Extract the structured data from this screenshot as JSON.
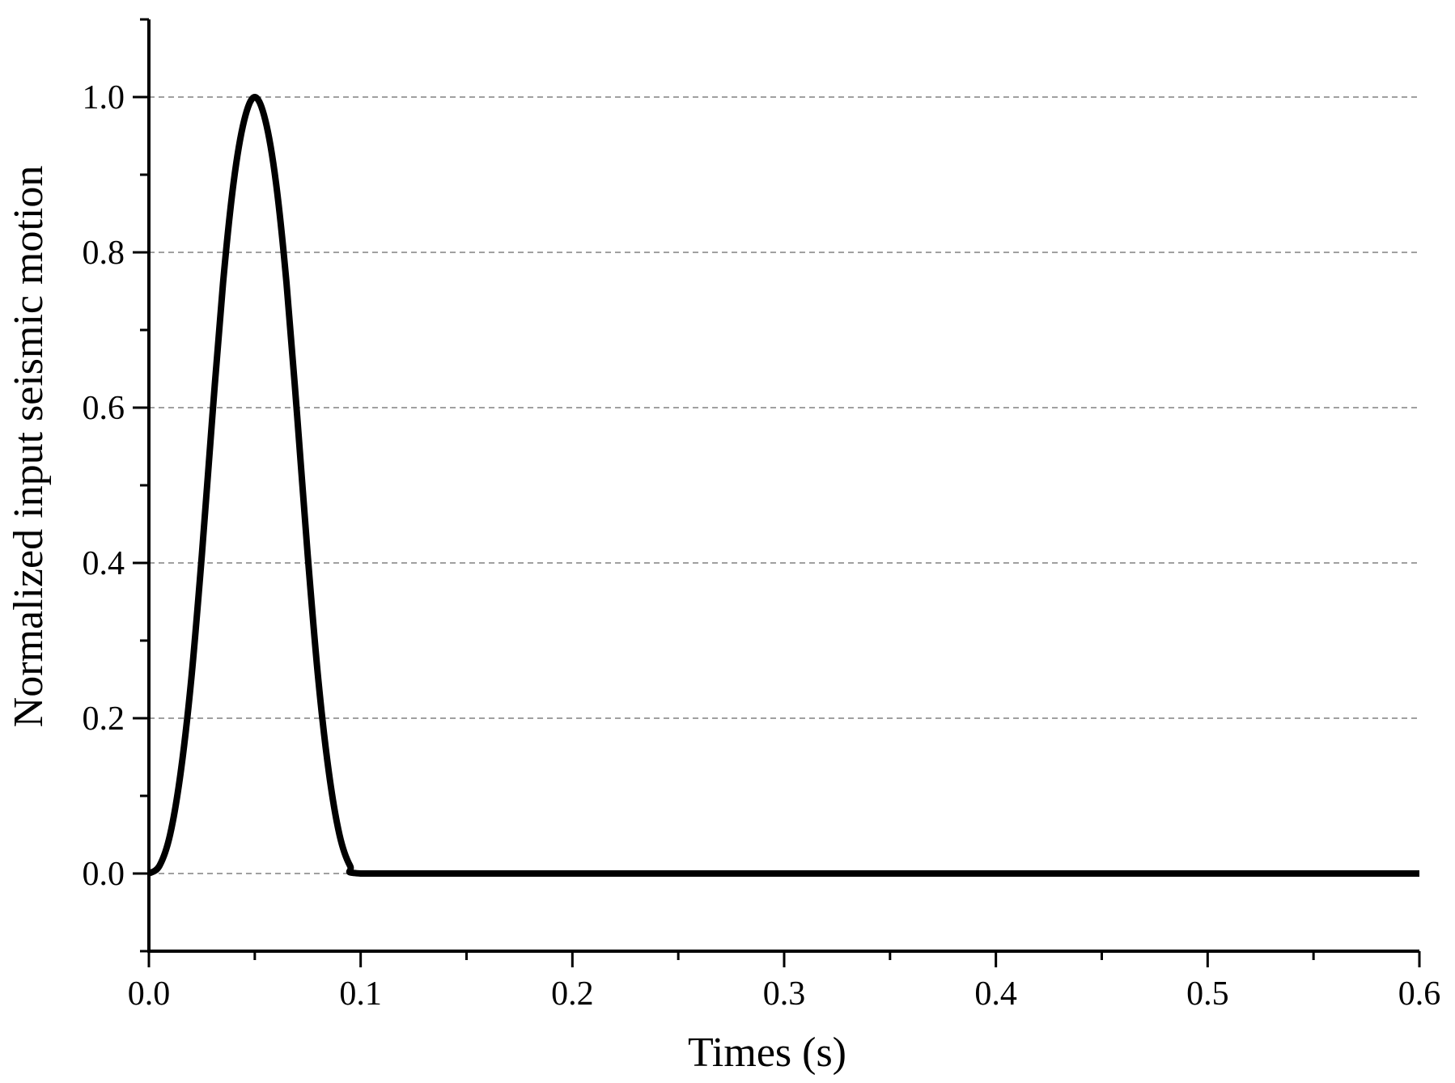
{
  "chart_data": {
    "type": "line",
    "xlabel": "Times (s)",
    "ylabel": "Normalized input seismic motion",
    "xlim": [
      0.0,
      0.6
    ],
    "ylim": [
      -0.1,
      1.1
    ],
    "x_ticks": [
      0.0,
      0.1,
      0.2,
      0.3,
      0.4,
      0.5,
      0.6
    ],
    "x_tick_labels": [
      "0.0",
      "0.1",
      "0.2",
      "0.3",
      "0.4",
      "0.5",
      "0.6"
    ],
    "x_minor_ticks": [
      0.05,
      0.15,
      0.25,
      0.35,
      0.45,
      0.55
    ],
    "y_ticks": [
      0.0,
      0.2,
      0.4,
      0.6,
      0.8,
      1.0
    ],
    "y_tick_labels": [
      "0.0",
      "0.2",
      "0.4",
      "0.6",
      "0.8",
      "1.0"
    ],
    "y_minor_ticks": [
      -0.1,
      0.1,
      0.3,
      0.5,
      0.7,
      0.9,
      1.1
    ],
    "grid": "horizontal dashed at major y ticks",
    "line_color": "#000000",
    "grid_color": "#808080",
    "series": [
      {
        "x": [
          0.0,
          0.005,
          0.01,
          0.015,
          0.02,
          0.025,
          0.03,
          0.035,
          0.04,
          0.045,
          0.05,
          0.055,
          0.06,
          0.065,
          0.07,
          0.075,
          0.08,
          0.085,
          0.09,
          0.095,
          0.1,
          0.15,
          0.2,
          0.25,
          0.3,
          0.35,
          0.4,
          0.45,
          0.5,
          0.55,
          0.6
        ],
        "y": [
          0.0,
          0.01,
          0.05,
          0.13,
          0.25,
          0.41,
          0.59,
          0.76,
          0.89,
          0.97,
          1.0,
          0.97,
          0.89,
          0.76,
          0.59,
          0.41,
          0.25,
          0.13,
          0.05,
          0.01,
          0.0,
          0.0,
          0.0,
          0.0,
          0.0,
          0.0,
          0.0,
          0.0,
          0.0,
          0.0,
          0.0
        ]
      }
    ]
  }
}
